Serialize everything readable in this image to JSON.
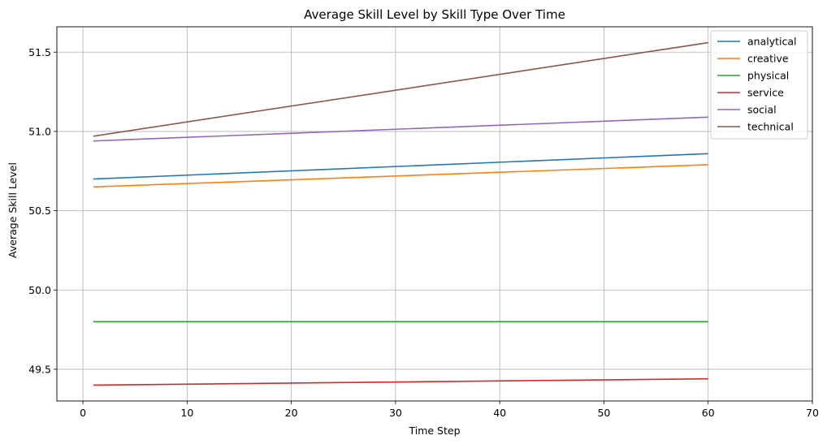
{
  "chart_data": {
    "type": "line",
    "title": "Average Skill Level by Skill Type Over Time",
    "xlabel": "Time Step",
    "ylabel": "Average Skill Level",
    "xlim": [
      -2.5,
      70
    ],
    "ylim": [
      49.3,
      51.66
    ],
    "xticks": [
      0,
      10,
      20,
      30,
      40,
      50,
      60,
      70
    ],
    "yticks": [
      49.5,
      50.0,
      50.5,
      51.0,
      51.5
    ],
    "ytick_labels": [
      "49.5",
      "50.0",
      "50.5",
      "51.0",
      "51.5"
    ],
    "grid": true,
    "legend_position": "top-right",
    "series": [
      {
        "name": "analytical",
        "color": "#1f77b4",
        "x": [
          1,
          60
        ],
        "y": [
          50.7,
          50.86
        ]
      },
      {
        "name": "creative",
        "color": "#ff7f0e",
        "x": [
          1,
          60
        ],
        "y": [
          50.65,
          50.79
        ]
      },
      {
        "name": "physical",
        "color": "#2ca02c",
        "x": [
          1,
          60
        ],
        "y": [
          49.8,
          49.8
        ]
      },
      {
        "name": "service",
        "color": "#d62728",
        "x": [
          1,
          60
        ],
        "y": [
          49.4,
          49.44
        ]
      },
      {
        "name": "social",
        "color": "#9467bd",
        "x": [
          1,
          60
        ],
        "y": [
          50.94,
          51.09
        ]
      },
      {
        "name": "technical",
        "color": "#8c564b",
        "x": [
          1,
          60
        ],
        "y": [
          50.97,
          51.56
        ]
      }
    ]
  }
}
